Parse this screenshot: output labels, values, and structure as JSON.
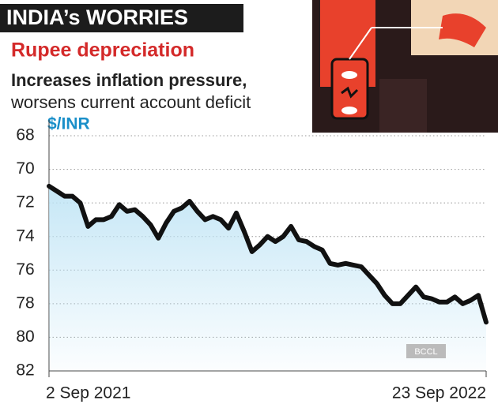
{
  "chart_data": {
    "type": "line",
    "title": "INDIA’s WORRIES",
    "subtitle": "Rupee depreciation",
    "headline": [
      "Increases inflation pressure,",
      "worsens current account deficit"
    ],
    "y_label": "$/INR",
    "watermark": "BCCL",
    "ylim": [
      68,
      82
    ],
    "y_inverted": true,
    "yticks": [
      68,
      70,
      72,
      74,
      76,
      78,
      80,
      82
    ],
    "grid": true,
    "color": "#111111",
    "fill_color": "#bfe4f5",
    "categories": [
      "2 Sep 2021",
      null,
      null,
      null,
      null,
      null,
      null,
      null,
      null,
      null,
      null,
      null,
      null,
      null,
      null,
      null,
      null,
      null,
      null,
      null,
      null,
      null,
      null,
      null,
      null,
      null,
      null,
      null,
      null,
      null,
      null,
      null,
      null,
      null,
      null,
      null,
      null,
      null,
      null,
      null,
      null,
      null,
      null,
      null,
      null,
      null,
      null,
      null,
      null,
      null,
      null,
      null,
      null,
      null,
      null,
      null,
      "23 Sep 2022"
    ],
    "values": [
      71.0,
      71.3,
      71.6,
      71.6,
      72.0,
      73.4,
      73.0,
      73.0,
      72.8,
      72.1,
      72.5,
      72.4,
      72.8,
      73.3,
      74.1,
      73.2,
      72.5,
      72.3,
      71.9,
      72.5,
      73.0,
      72.8,
      73.0,
      73.5,
      72.6,
      73.7,
      74.9,
      74.5,
      74.0,
      74.3,
      74.0,
      73.4,
      74.2,
      74.3,
      74.6,
      74.8,
      75.6,
      75.7,
      75.6,
      75.7,
      75.8,
      76.3,
      76.8,
      77.5,
      78.0,
      78.0,
      77.5,
      77.0,
      77.6,
      77.7,
      77.9,
      77.9,
      77.6,
      78.0,
      77.8,
      77.5,
      79.1
    ]
  }
}
